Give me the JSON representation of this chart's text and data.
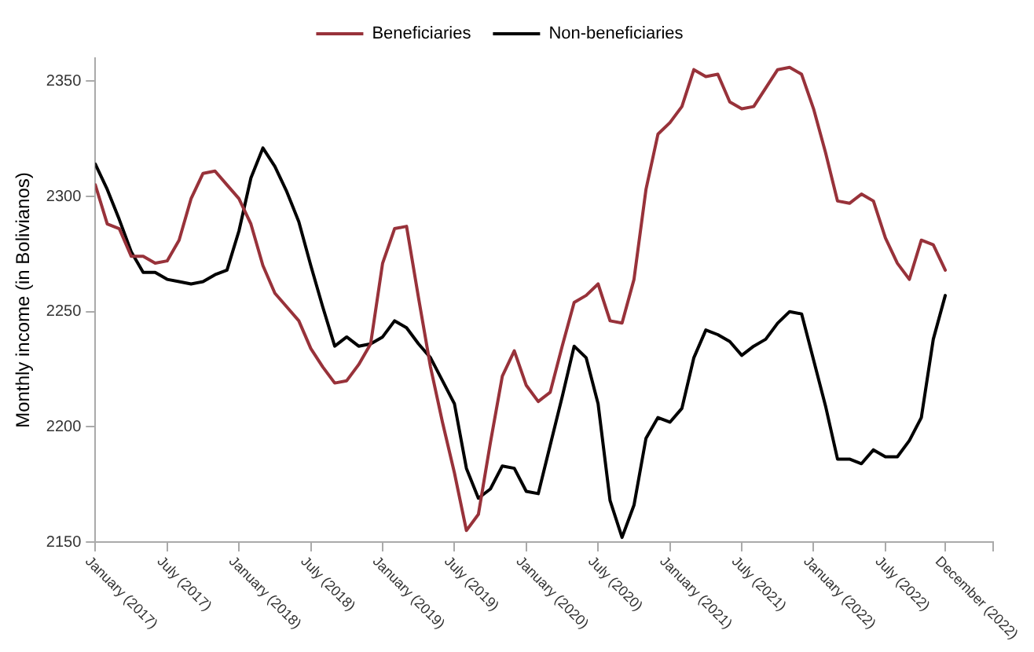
{
  "chart_data": {
    "type": "line",
    "ylabel": "Monthly income (in Bolivianos)",
    "legend": "top",
    "marker": "none",
    "line_style": "solid",
    "grid": false,
    "x": [
      "2017-01",
      "2017-02",
      "2017-03",
      "2017-04",
      "2017-05",
      "2017-06",
      "2017-07",
      "2017-08",
      "2017-09",
      "2017-10",
      "2017-11",
      "2017-12",
      "2018-01",
      "2018-02",
      "2018-03",
      "2018-04",
      "2018-05",
      "2018-06",
      "2018-07",
      "2018-08",
      "2018-09",
      "2018-10",
      "2018-11",
      "2018-12",
      "2019-01",
      "2019-02",
      "2019-03",
      "2019-04",
      "2019-05",
      "2019-06",
      "2019-07",
      "2019-08",
      "2019-09",
      "2019-10",
      "2019-11",
      "2019-12",
      "2020-01",
      "2020-02",
      "2020-03",
      "2020-04",
      "2020-05",
      "2020-06",
      "2020-07",
      "2020-08",
      "2020-09",
      "2020-10",
      "2020-11",
      "2020-12",
      "2021-01",
      "2021-02",
      "2021-03",
      "2021-04",
      "2021-05",
      "2021-06",
      "2021-07",
      "2021-08",
      "2021-09",
      "2021-10",
      "2021-11",
      "2021-12",
      "2022-01",
      "2022-02",
      "2022-03",
      "2022-04",
      "2022-05",
      "2022-06",
      "2022-07",
      "2022-08",
      "2022-09",
      "2022-10",
      "2022-11",
      "2022-12"
    ],
    "series": [
      {
        "name": "Beneficiaries",
        "color": "#98323a",
        "values": [
          2305,
          2288,
          2286,
          2274,
          2274,
          2271,
          2272,
          2281,
          2299,
          2310,
          2311,
          2305,
          2299,
          2288,
          2270,
          2258,
          2252,
          2246,
          2234,
          2226,
          2219,
          2220,
          2227,
          2236,
          2271,
          2286,
          2287,
          2256,
          2226,
          2202,
          2180,
          2155,
          2162,
          2193,
          2222,
          2233,
          2218,
          2211,
          2215,
          2235,
          2254,
          2257,
          2262,
          2246,
          2245,
          2264,
          2303,
          2327,
          2332,
          2339,
          2355,
          2352,
          2353,
          2341,
          2338,
          2339,
          2347,
          2355,
          2356,
          2353,
          2338,
          2319,
          2298,
          2297,
          2301,
          2298,
          2282,
          2271,
          2264,
          2281,
          2279,
          2268
        ]
      },
      {
        "name": "Non-beneficiaries",
        "color": "#000000",
        "values": [
          2314,
          2303,
          2290,
          2276,
          2267,
          2267,
          2264,
          2263,
          2262,
          2263,
          2266,
          2268,
          2285,
          2308,
          2321,
          2313,
          2302,
          2289,
          2270,
          2252,
          2235,
          2239,
          2235,
          2236,
          2239,
          2246,
          2243,
          2236,
          2230,
          2220,
          2210,
          2182,
          2169,
          2173,
          2183,
          2182,
          2172,
          2171,
          2192,
          2213,
          2235,
          2230,
          2210,
          2168,
          2152,
          2166,
          2195,
          2204,
          2202,
          2208,
          2230,
          2242,
          2240,
          2237,
          2231,
          2235,
          2238,
          2245,
          2250,
          2249,
          2229,
          2209,
          2186,
          2186,
          2184,
          2190,
          2187,
          2187,
          2194,
          2204,
          2238,
          2257
        ]
      }
    ],
    "xlim": [
      "2017-01",
      "2023-04"
    ],
    "xticks": [
      {
        "value": "2017-01",
        "label": "January (2017)"
      },
      {
        "value": "2017-07",
        "label": "July (2017)"
      },
      {
        "value": "2018-01",
        "label": "January (2018)"
      },
      {
        "value": "2018-07",
        "label": "July (2018)"
      },
      {
        "value": "2019-01",
        "label": "January (2019)"
      },
      {
        "value": "2019-07",
        "label": "July (2019)"
      },
      {
        "value": "2020-01",
        "label": "January (2020)"
      },
      {
        "value": "2020-07",
        "label": "July (2020)"
      },
      {
        "value": "2021-01",
        "label": "January (2021)"
      },
      {
        "value": "2021-07",
        "label": "July (2021)"
      },
      {
        "value": "2022-01",
        "label": "January (2022)"
      },
      {
        "value": "2022-07",
        "label": "July (2022)"
      },
      {
        "value": "2022-12",
        "label": "December (2022)"
      },
      {
        "value": "2023-04",
        "label": null
      }
    ],
    "ylim": [
      2150,
      2360
    ],
    "yticks": [
      2150,
      2200,
      2250,
      2300,
      2350
    ]
  }
}
